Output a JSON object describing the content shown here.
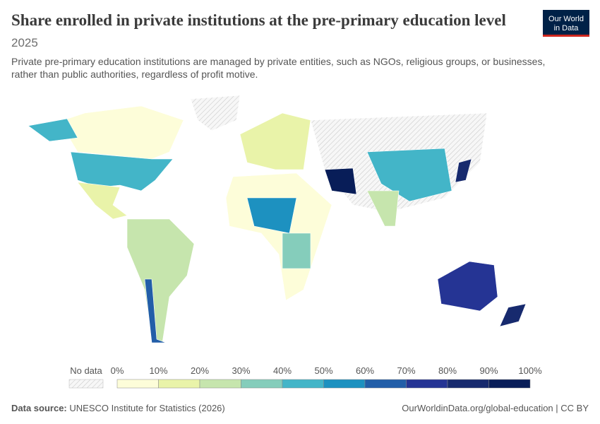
{
  "header": {
    "title": "Share enrolled in private institutions at the pre-primary education level",
    "year": "2025",
    "subtitle_line1": "Private pre-primary education institutions are managed by private entities, such as NGOs, religious groups, or businesses,",
    "subtitle_line2": "rather than public authorities, regardless of profit motive.",
    "logo_line1": "Our World",
    "logo_line2": "in Data"
  },
  "legend": {
    "no_data": "No data",
    "ticks": [
      "0%",
      "10%",
      "20%",
      "30%",
      "40%",
      "50%",
      "60%",
      "70%",
      "80%",
      "90%",
      "100%"
    ],
    "colors": [
      "#fdfdd9",
      "#e9f3a9",
      "#c6e5ad",
      "#85cdbb",
      "#43b5c8",
      "#1d91c0",
      "#225ea8",
      "#253494",
      "#172a6e",
      "#081d58"
    ]
  },
  "footer": {
    "source_label": "Data source:",
    "source": "UNESCO Institute for Statistics (2026)",
    "link": "OurWorldinData.org/global-education | CC BY"
  }
}
